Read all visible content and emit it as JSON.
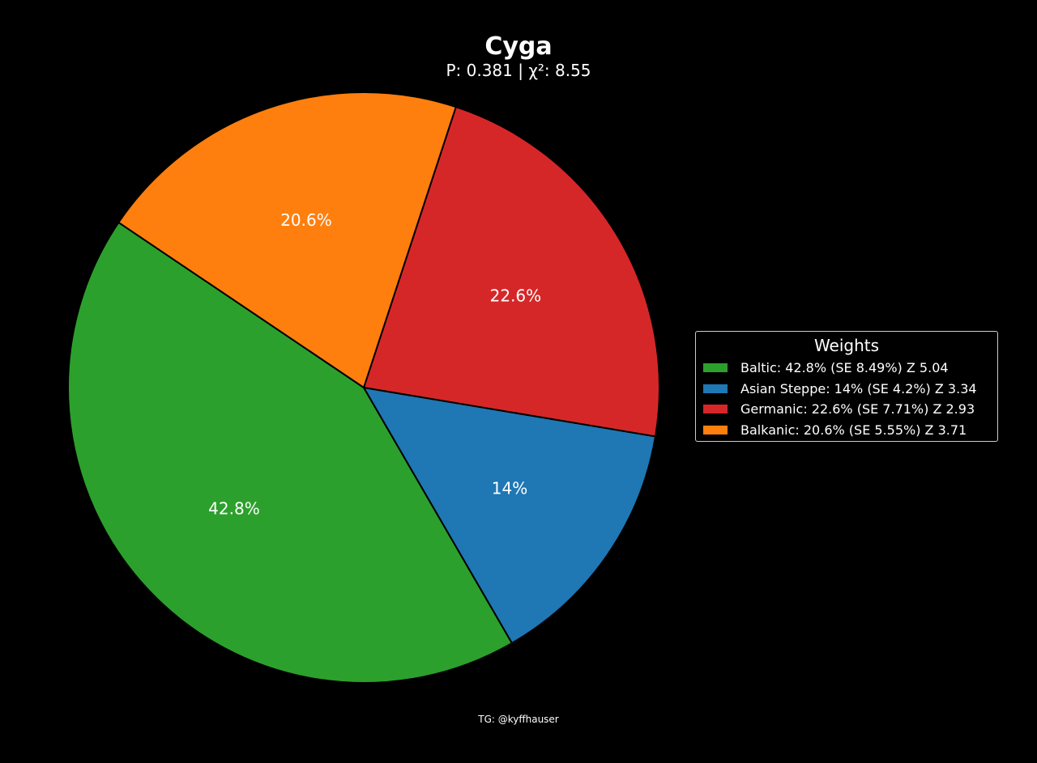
{
  "chart_data": {
    "type": "pie",
    "title": "Cyga",
    "subtitle": "P: 0.381 | χ²: 8.55",
    "slices": [
      {
        "label": "Baltic",
        "value": 42.8,
        "pct_label": "42.8%",
        "color": "#2ca02c"
      },
      {
        "label": "Asian Steppe",
        "value": 14,
        "pct_label": "14%",
        "color": "#1f77b4"
      },
      {
        "label": "Germanic",
        "value": 22.6,
        "pct_label": "22.6%",
        "color": "#d62728"
      },
      {
        "label": "Balkanic",
        "value": 20.6,
        "pct_label": "20.6%",
        "color": "#ff7f0e"
      }
    ],
    "legend": {
      "title": "Weights",
      "placement": "right",
      "entries": [
        "Baltic: 42.8% (SE 8.49%) Z 5.04",
        "Asian Steppe: 14% (SE 4.2%) Z 3.34",
        "Germanic: 22.6% (SE 7.71%) Z 2.93",
        "Balkanic: 20.6% (SE 5.55%) Z 3.71"
      ]
    },
    "footer": "TG: @kyffhauser"
  }
}
